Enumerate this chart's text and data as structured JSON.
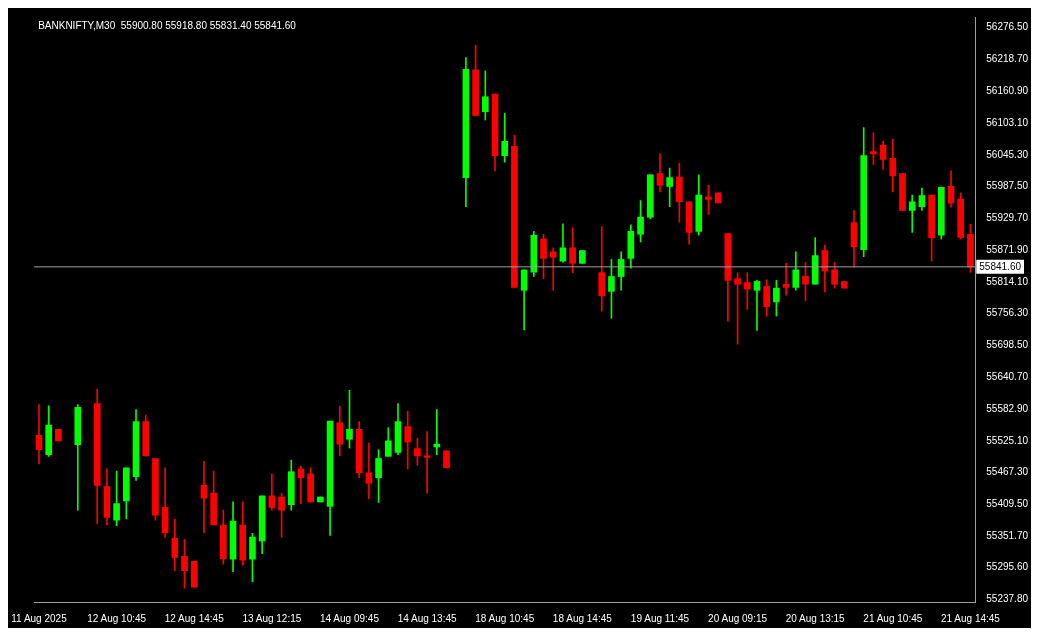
{
  "chart_data": {
    "type": "candlestick",
    "title": "BANKNIFTY,M30  55900.80 55918.80 55831.40 55841.60",
    "categories": [
      "11 Aug 2025",
      null,
      null,
      null,
      null,
      null,
      null,
      null,
      "12 Aug 10:45",
      null,
      null,
      null,
      null,
      null,
      null,
      null,
      "12 Aug 14:45",
      null,
      null,
      null,
      null,
      null,
      null,
      null,
      "13 Aug 12:15",
      null,
      null,
      null,
      null,
      null,
      null,
      null,
      "14 Aug 09:45",
      null,
      null,
      null,
      null,
      null,
      null,
      null,
      "14 Aug 13:45",
      null,
      null,
      null,
      null,
      null,
      null,
      null,
      "18 Aug 10:45",
      null,
      null,
      null,
      null,
      null,
      null,
      null,
      "18 Aug 14:45",
      null,
      null,
      null,
      null,
      null,
      null,
      null,
      "19 Aug 11:45",
      null,
      null,
      null,
      null,
      null,
      null,
      null,
      "20 Aug 09:15",
      null,
      null,
      null,
      null,
      null,
      null,
      null,
      "20 Aug 13:15",
      null,
      null,
      null,
      null,
      null,
      null,
      null,
      "21 Aug 10:45",
      null,
      null,
      null,
      null,
      null,
      null,
      null,
      "21 Aug 14:45"
    ],
    "ohlc": [
      [
        55535,
        55591,
        55483,
        55509
      ],
      [
        55500,
        55589,
        55497,
        55554
      ],
      [
        55546,
        55546,
        55525,
        55525
      ],
      null,
      [
        55518,
        55591,
        55399,
        55586
      ],
      null,
      [
        55593,
        55619,
        55374,
        55444
      ],
      [
        55442,
        55474,
        55372,
        55386
      ],
      [
        55381,
        55470,
        55371,
        55411
      ],
      [
        55416,
        55476,
        55383,
        55476
      ],
      [
        55460,
        55582,
        55453,
        55560
      ],
      [
        55560,
        55572,
        55497,
        55498
      ],
      [
        55493,
        55493,
        55381,
        55390
      ],
      [
        55404,
        55476,
        55350,
        55358
      ],
      [
        55348,
        55383,
        55289,
        55313
      ],
      [
        55315,
        55346,
        55257,
        55289
      ],
      [
        55306,
        55306,
        55259,
        55259
      ],
      [
        55444,
        55488,
        55358,
        55421
      ],
      [
        55430,
        55470,
        55372,
        55372
      ],
      [
        55372,
        55399,
        55301,
        55311
      ],
      [
        55310,
        55414,
        55287,
        55379
      ],
      [
        55372,
        55414,
        55299,
        55308
      ],
      [
        55310,
        55357,
        55269,
        55350
      ],
      [
        55343,
        55425,
        55320,
        55425
      ],
      [
        55425,
        55465,
        55399,
        55404
      ],
      [
        55423,
        55430,
        55350,
        55399
      ],
      [
        55409,
        55490,
        55399,
        55469
      ],
      [
        55474,
        55479,
        55411,
        55458
      ],
      [
        55465,
        55476,
        55414,
        55414
      ],
      [
        55414,
        55423,
        55414,
        55423
      ],
      [
        55406,
        55561,
        55353,
        55561
      ],
      [
        55558,
        55588,
        55498,
        55519
      ],
      [
        55528,
        55617,
        55512,
        55546
      ],
      [
        55546,
        55560,
        55458,
        55467
      ],
      [
        55467,
        55521,
        55420,
        55448
      ],
      [
        55458,
        55509,
        55413,
        55493
      ],
      [
        55497,
        55549,
        55497,
        55525
      ],
      [
        55504,
        55593,
        55500,
        55560
      ],
      [
        55551,
        55579,
        55474,
        55523
      ],
      [
        55511,
        55530,
        55481,
        55498
      ],
      [
        55498,
        55542,
        55430,
        55495
      ],
      [
        55514,
        55582,
        55500,
        55519
      ],
      [
        55507,
        55507,
        55476,
        55476
      ],
      null,
      [
        56004,
        56222,
        55951,
        56201
      ],
      [
        56200,
        56245,
        56116,
        56117
      ],
      [
        56124,
        56198,
        56109,
        56151
      ],
      [
        56156,
        56156,
        56016,
        56044
      ],
      [
        56044,
        56121,
        56032,
        56070
      ],
      [
        56061,
        56081,
        55804,
        55804
      ],
      [
        55799,
        55836,
        55727,
        55836
      ],
      [
        55832,
        55906,
        55824,
        55899
      ],
      [
        55892,
        55901,
        55820,
        55857
      ],
      [
        55869,
        55876,
        55799,
        55859
      ],
      [
        55852,
        55920,
        55850,
        55876
      ],
      [
        55876,
        55913,
        55831,
        55848
      ],
      [
        55848,
        55871,
        55848,
        55871
      ],
      null,
      [
        55831,
        55915,
        55761,
        55789
      ],
      [
        55797,
        55855,
        55748,
        55824
      ],
      [
        55824,
        55869,
        55799,
        55855
      ],
      [
        55857,
        55918,
        55839,
        55906
      ],
      [
        55901,
        55962,
        55887,
        55932
      ],
      [
        55932,
        56009,
        55929,
        56009
      ],
      [
        56011,
        56047,
        55978,
        55990
      ],
      [
        55988,
        56021,
        55951,
        56004
      ],
      [
        56005,
        56030,
        55923,
        55960
      ],
      [
        55960,
        55960,
        55883,
        55904
      ],
      [
        55906,
        56009,
        55899,
        55972
      ],
      [
        55969,
        55990,
        55937,
        55964
      ],
      [
        55976,
        55976,
        55958,
        55958
      ],
      [
        55902,
        55902,
        55743,
        55817
      ],
      [
        55820,
        55831,
        55701,
        55810
      ],
      [
        55813,
        55831,
        55764,
        55801
      ],
      [
        55799,
        55817,
        55726,
        55815
      ],
      [
        55806,
        55818,
        55752,
        55769
      ],
      [
        55778,
        55817,
        55752,
        55803
      ],
      [
        55810,
        55848,
        55790,
        55804
      ],
      [
        55804,
        55869,
        55799,
        55836
      ],
      [
        55825,
        55850,
        55780,
        55810
      ],
      [
        55810,
        55895,
        55810,
        55862
      ],
      [
        55871,
        55881,
        55796,
        55834
      ],
      [
        55836,
        55850,
        55803,
        55810
      ],
      [
        55815,
        55815,
        55803,
        55803
      ],
      [
        55922,
        55944,
        55841,
        55878
      ],
      [
        55873,
        56095,
        55860,
        56044
      ],
      [
        56051,
        56086,
        56028,
        56047
      ],
      [
        56063,
        56070,
        56019,
        56037
      ],
      [
        56039,
        56074,
        55978,
        56007
      ],
      [
        56011,
        56011,
        55944,
        55944
      ],
      [
        55944,
        55972,
        55904,
        55960
      ],
      [
        55951,
        55985,
        55944,
        55971
      ],
      [
        55972,
        55972,
        55852,
        55894
      ],
      [
        55899,
        55986,
        55892,
        55986
      ],
      [
        55988,
        56016,
        55950,
        55958
      ],
      [
        55965,
        55976,
        55892,
        55895
      ],
      [
        55900.8,
        55918.8,
        55831.4,
        55841.6
      ]
    ],
    "colors": [
      "#ff0000",
      "#00ff00",
      "#ff0000",
      null,
      "#00ff00",
      null,
      "#ff0000",
      "#ff0000",
      "#00ff00",
      "#00ff00",
      "#00ff00",
      "#ff0000",
      "#ff0000",
      "#ff0000",
      "#ff0000",
      "#ff0000",
      "#ff0000",
      "#ff0000",
      "#ff0000",
      "#ff0000",
      "#00ff00",
      "#ff0000",
      "#00ff00",
      "#00ff00",
      "#ff0000",
      "#ff0000",
      "#00ff00",
      "#ff0000",
      "#ff0000",
      "#00ff00",
      "#00ff00",
      "#ff0000",
      "#00ff00",
      "#ff0000",
      "#ff0000",
      "#00ff00",
      "#00ff00",
      "#00ff00",
      "#ff0000",
      "#ff0000",
      "#ff0000",
      "#00ff00",
      "#ff0000",
      null,
      "#00ff00",
      "#ff0000",
      "#00ff00",
      "#ff0000",
      "#00ff00",
      "#ff0000",
      "#00ff00",
      "#00ff00",
      "#ff0000",
      "#ff0000",
      "#00ff00",
      "#ff0000",
      "#00ff00",
      null,
      "#ff0000",
      "#00ff00",
      "#00ff00",
      "#00ff00",
      "#00ff00",
      "#00ff00",
      "#ff0000",
      "#00ff00",
      "#ff0000",
      "#ff0000",
      "#00ff00",
      "#ff0000",
      "#ff0000",
      "#ff0000",
      "#ff0000",
      "#ff0000",
      "#00ff00",
      "#ff0000",
      "#00ff00",
      "#ff0000",
      "#00ff00",
      "#ff0000",
      "#00ff00",
      "#ff0000",
      "#ff0000",
      "#ff0000",
      "#ff0000",
      "#00ff00",
      "#ff0000",
      "#ff0000",
      "#ff0000",
      "#ff0000",
      "#00ff00",
      "#00ff00",
      "#ff0000",
      "#00ff00",
      "#ff0000",
      "#ff0000",
      "#ff0000"
    ],
    "ylim": [
      55232,
      56296
    ],
    "yticks": [
      {
        "value": 55237.8,
        "label": "55237.80"
      },
      {
        "value": 55295.6,
        "label": "55295.60"
      },
      {
        "value": 55351.7,
        "label": "55351.70"
      },
      {
        "value": 55409.5,
        "label": "55409.50"
      },
      {
        "value": 55467.3,
        "label": "55467.30"
      },
      {
        "value": 55525.1,
        "label": "55525.10"
      },
      {
        "value": 55582.9,
        "label": "55582.90"
      },
      {
        "value": 55640.7,
        "label": "55640.70"
      },
      {
        "value": 55698.5,
        "label": "55698.50"
      },
      {
        "value": 55756.3,
        "label": "55756.30"
      },
      {
        "value": 55814.1,
        "label": "55814.10"
      },
      {
        "value": 55871.9,
        "label": "55871.90"
      },
      {
        "value": 55929.7,
        "label": "55929.70"
      },
      {
        "value": 55987.5,
        "label": "55987.50"
      },
      {
        "value": 56045.3,
        "label": "56045.30"
      },
      {
        "value": 56103.1,
        "label": "56103.10"
      },
      {
        "value": 56160.9,
        "label": "56160.90"
      },
      {
        "value": 56218.7,
        "label": "56218.70"
      },
      {
        "value": 56276.5,
        "label": "56276.50"
      }
    ],
    "ref_lines": [
      {
        "axis": "y",
        "value": 55841.6,
        "label": "55841.60",
        "color": "#a0a0a4"
      }
    ],
    "grid": false,
    "legend": false
  }
}
